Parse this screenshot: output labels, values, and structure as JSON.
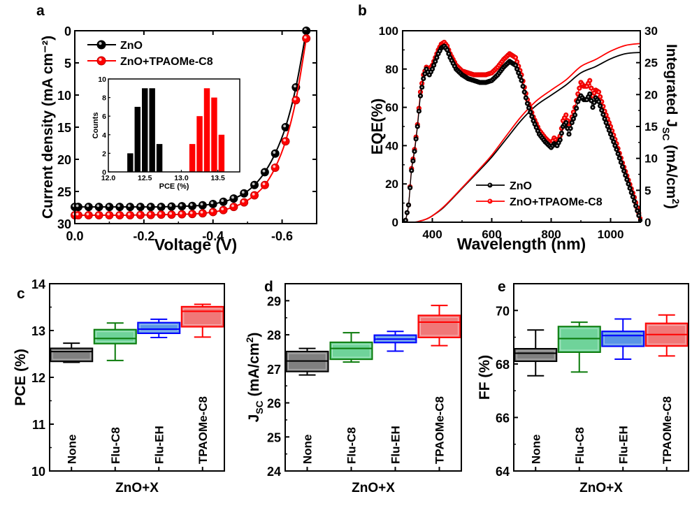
{
  "chart_data": [
    {
      "panel": "a",
      "type": "line",
      "xlabel": "Voltage (V)",
      "ylabel": "Current density (mA cm⁻²)",
      "xlim": [
        0.0,
        -0.7
      ],
      "ylim": [
        30,
        0
      ],
      "xticks": [
        "0.0",
        "-0.2",
        "-0.4",
        "-0.6"
      ],
      "xtick_values": [
        0.0,
        -0.2,
        -0.4,
        -0.6
      ],
      "yticks": [
        "0",
        "5",
        "10",
        "15",
        "20",
        "25",
        "30"
      ],
      "ytick_values": [
        0,
        5,
        10,
        15,
        20,
        25,
        30
      ],
      "legend_position": "top-left",
      "series": [
        {
          "name": "ZnO",
          "color": "#000000",
          "marker": "circle",
          "x": [
            0.0,
            -0.01,
            -0.04,
            -0.07,
            -0.1,
            -0.13,
            -0.16,
            -0.19,
            -0.22,
            -0.25,
            -0.28,
            -0.31,
            -0.34,
            -0.37,
            -0.4,
            -0.43,
            -0.46,
            -0.49,
            -0.52,
            -0.55,
            -0.58,
            -0.61,
            -0.64,
            -0.67
          ],
          "y": [
            27.4,
            27.4,
            27.4,
            27.4,
            27.4,
            27.4,
            27.4,
            27.4,
            27.4,
            27.4,
            27.35,
            27.3,
            27.25,
            27.15,
            26.95,
            26.6,
            26.1,
            25.3,
            24.0,
            22.0,
            19.1,
            15.0,
            8.8,
            0.0
          ]
        },
        {
          "name": "ZnO+TPAOMe-C8",
          "color": "#ff0000",
          "marker": "circle",
          "x": [
            0.0,
            -0.01,
            -0.04,
            -0.07,
            -0.1,
            -0.13,
            -0.16,
            -0.19,
            -0.22,
            -0.25,
            -0.28,
            -0.31,
            -0.34,
            -0.37,
            -0.4,
            -0.43,
            -0.46,
            -0.49,
            -0.52,
            -0.55,
            -0.58,
            -0.61,
            -0.64,
            -0.67
          ],
          "y": [
            28.7,
            28.7,
            28.7,
            28.7,
            28.7,
            28.7,
            28.7,
            28.65,
            28.65,
            28.6,
            28.6,
            28.55,
            28.5,
            28.4,
            28.2,
            27.9,
            27.4,
            26.7,
            25.6,
            24.0,
            21.3,
            17.2,
            10.8,
            1.2
          ]
        }
      ],
      "inset": {
        "type": "bar",
        "xlabel": "PCE (%)",
        "ylabel": "Counts",
        "xlim": [
          12.0,
          13.8
        ],
        "ylim": [
          0,
          10
        ],
        "xticks": [
          "12.0",
          "12.5",
          "13.0",
          "13.5"
        ],
        "xtick_values": [
          12.0,
          12.5,
          13.0,
          13.5
        ],
        "yticks": [
          "0",
          "2",
          "4",
          "6",
          "8",
          "10"
        ],
        "ytick_values": [
          0,
          2,
          4,
          6,
          8,
          10
        ],
        "bin_width": 0.1,
        "series": [
          {
            "name": "ZnO",
            "color": "#000000",
            "bin_centers": [
              12.3,
              12.4,
              12.5,
              12.6,
              12.7
            ],
            "counts": [
              2,
              7,
              9,
              9,
              3
            ]
          },
          {
            "name": "ZnO+TPAOMe-C8",
            "color": "#ff0000",
            "bin_centers": [
              13.15,
              13.25,
              13.35,
              13.45,
              13.55
            ],
            "counts": [
              3,
              6,
              9,
              8,
              4
            ]
          }
        ]
      }
    },
    {
      "panel": "b",
      "type": "line",
      "xlabel": "Wavelength (nm)",
      "ylabel": "EQE(%)",
      "y2label": "Integrated J_SC (mA/cm²)",
      "xlim": [
        300,
        1100
      ],
      "ylim": [
        0,
        100
      ],
      "y2lim": [
        0,
        30
      ],
      "xticks": [
        "400",
        "600",
        "800",
        "1000"
      ],
      "xtick_values": [
        400,
        600,
        800,
        1000
      ],
      "yticks": [
        "0",
        "20",
        "40",
        "60",
        "80",
        "100"
      ],
      "ytick_values": [
        0,
        20,
        40,
        60,
        80,
        100
      ],
      "y2ticks": [
        "0",
        "5",
        "10",
        "15",
        "20",
        "25",
        "30"
      ],
      "y2tick_values": [
        0,
        5,
        10,
        15,
        20,
        25,
        30
      ],
      "legend_position": "bottom-center",
      "series": [
        {
          "name": "ZnO",
          "axis": "left",
          "color": "#000000",
          "marker": "circle",
          "x": [
            310,
            320,
            330,
            340,
            350,
            360,
            370,
            380,
            390,
            400,
            410,
            420,
            430,
            440,
            450,
            460,
            480,
            500,
            520,
            540,
            560,
            580,
            600,
            620,
            640,
            660,
            680,
            700,
            720,
            740,
            760,
            780,
            800,
            810,
            820,
            830,
            840,
            850,
            860,
            870,
            880,
            890,
            900,
            910,
            920,
            930,
            940,
            950,
            960,
            980,
            1000,
            1020,
            1040,
            1060,
            1080,
            1100
          ],
          "y": [
            1,
            9,
            27,
            37,
            50,
            66,
            75,
            80,
            77,
            80,
            84,
            88,
            91,
            92,
            90,
            86,
            80,
            77,
            75,
            74,
            73,
            73,
            74,
            77,
            81,
            84,
            82,
            74,
            62,
            53,
            46,
            42,
            39,
            41,
            40,
            43,
            50,
            52,
            46,
            52,
            56,
            63,
            66,
            64,
            64,
            67,
            60,
            65,
            63,
            54,
            46,
            38,
            29,
            20,
            11,
            1
          ]
        },
        {
          "name": "ZnO+TPAOMe-C8",
          "axis": "left",
          "color": "#ff0000",
          "marker": "circle",
          "x": [
            310,
            320,
            330,
            340,
            350,
            360,
            370,
            380,
            390,
            400,
            410,
            420,
            430,
            440,
            450,
            460,
            480,
            500,
            520,
            540,
            560,
            580,
            600,
            620,
            640,
            660,
            680,
            700,
            720,
            740,
            760,
            780,
            800,
            810,
            820,
            830,
            840,
            850,
            860,
            870,
            880,
            890,
            900,
            910,
            920,
            930,
            940,
            950,
            960,
            980,
            1000,
            1020,
            1040,
            1060,
            1080,
            1100
          ],
          "y": [
            1,
            9,
            28,
            38,
            51,
            68,
            77,
            81,
            80,
            82,
            86,
            90,
            93,
            94,
            92,
            88,
            82,
            79,
            78,
            77,
            77,
            77,
            78,
            81,
            85,
            88,
            86,
            77,
            64,
            55,
            48,
            44,
            41,
            44,
            42,
            45,
            53,
            56,
            50,
            55,
            60,
            67,
            73,
            71,
            71,
            74,
            66,
            69,
            68,
            58,
            50,
            41,
            31,
            22,
            13,
            2
          ]
        },
        {
          "name": "ZnO integrated J_SC",
          "axis": "right",
          "color": "#000000",
          "x": [
            300,
            340,
            360,
            380,
            400,
            440,
            500,
            560,
            600,
            650,
            700,
            750,
            800,
            850,
            900,
            950,
            1000,
            1050,
            1100
          ],
          "y": [
            0,
            0,
            0.2,
            0.5,
            1.0,
            2.4,
            5.3,
            8.2,
            10.2,
            13.1,
            16.0,
            18.3,
            19.9,
            21.5,
            23.4,
            24.4,
            25.6,
            26.4,
            26.6
          ]
        },
        {
          "name": "ZnO+TPAOMe-C8 integrated J_SC",
          "axis": "right",
          "color": "#ff0000",
          "x": [
            300,
            340,
            360,
            380,
            400,
            440,
            500,
            560,
            600,
            650,
            700,
            750,
            800,
            850,
            900,
            950,
            1000,
            1050,
            1100
          ],
          "y": [
            0,
            0,
            0.2,
            0.5,
            1.0,
            2.5,
            5.4,
            8.4,
            10.5,
            13.6,
            16.6,
            19.0,
            20.7,
            22.3,
            24.4,
            25.5,
            26.8,
            27.7,
            28.0
          ]
        }
      ]
    },
    {
      "panel": "c",
      "type": "box",
      "xlabel": "ZnO+X",
      "ylabel": "PCE (%)",
      "ylim": [
        10,
        14
      ],
      "yticks": [
        "10",
        "11",
        "12",
        "13",
        "14"
      ],
      "ytick_values": [
        10,
        11,
        12,
        13,
        14
      ],
      "categories": [
        "None",
        "Flu-C8",
        "Flu-EH",
        "TPAOMe-C8"
      ],
      "boxes": [
        {
          "color": "#000000",
          "fill": "#808080",
          "min": 12.32,
          "q1": 12.34,
          "median": 12.55,
          "q3": 12.62,
          "max": 12.73
        },
        {
          "color": "#0a7a0a",
          "fill": "#6fd39a",
          "min": 12.36,
          "q1": 12.72,
          "median": 12.83,
          "q3": 13.02,
          "max": 13.16
        },
        {
          "color": "#0000ff",
          "fill": "#5a95e6",
          "min": 12.85,
          "q1": 12.94,
          "median": 13.03,
          "q3": 13.17,
          "max": 13.24
        },
        {
          "color": "#ff0000",
          "fill": "#f07878",
          "min": 12.86,
          "q1": 13.08,
          "median": 13.41,
          "q3": 13.51,
          "max": 13.56
        }
      ]
    },
    {
      "panel": "d",
      "type": "box",
      "xlabel": "ZnO+X",
      "ylabel": "J_SC (mA/cm²)",
      "ylim": [
        24,
        29.5
      ],
      "yticks": [
        "24",
        "25",
        "26",
        "27",
        "28",
        "29"
      ],
      "ytick_values": [
        24,
        25,
        26,
        27,
        28,
        29
      ],
      "categories": [
        "None",
        "Flu-C8",
        "Flu-EH",
        "TPAOMe-C8"
      ],
      "boxes": [
        {
          "color": "#000000",
          "fill": "#808080",
          "min": 26.82,
          "q1": 26.92,
          "median": 27.23,
          "q3": 27.51,
          "max": 27.6
        },
        {
          "color": "#0a7a0a",
          "fill": "#6fd39a",
          "min": 27.2,
          "q1": 27.28,
          "median": 27.6,
          "q3": 27.78,
          "max": 28.06
        },
        {
          "color": "#0000ff",
          "fill": "#5a95e6",
          "min": 27.52,
          "q1": 27.77,
          "median": 27.87,
          "q3": 27.99,
          "max": 28.1
        },
        {
          "color": "#ff0000",
          "fill": "#f07878",
          "min": 27.68,
          "q1": 27.92,
          "median": 28.37,
          "q3": 28.57,
          "max": 28.86
        }
      ]
    },
    {
      "panel": "e",
      "type": "box",
      "xlabel": "ZnO+X",
      "ylabel": "FF (%)",
      "ylim": [
        64,
        71
      ],
      "yticks": [
        "64",
        "66",
        "68",
        "70"
      ],
      "ytick_values": [
        64,
        66,
        68,
        70
      ],
      "categories": [
        "None",
        "Flu-C8",
        "Flu-EH",
        "TPAOMe-C8"
      ],
      "boxes": [
        {
          "color": "#000000",
          "fill": "#808080",
          "min": 67.56,
          "q1": 68.1,
          "median": 68.4,
          "q3": 68.57,
          "max": 69.27
        },
        {
          "color": "#0a7a0a",
          "fill": "#6fd39a",
          "min": 67.7,
          "q1": 68.44,
          "median": 68.95,
          "q3": 69.4,
          "max": 69.56
        },
        {
          "color": "#0000ff",
          "fill": "#5a95e6",
          "min": 68.18,
          "q1": 68.66,
          "median": 69.06,
          "q3": 69.22,
          "max": 69.68
        },
        {
          "color": "#ff0000",
          "fill": "#f07878",
          "min": 68.3,
          "q1": 68.67,
          "median": 69.1,
          "q3": 69.52,
          "max": 69.83
        }
      ]
    }
  ],
  "panel_labels": [
    "a",
    "b",
    "c",
    "d",
    "e"
  ]
}
